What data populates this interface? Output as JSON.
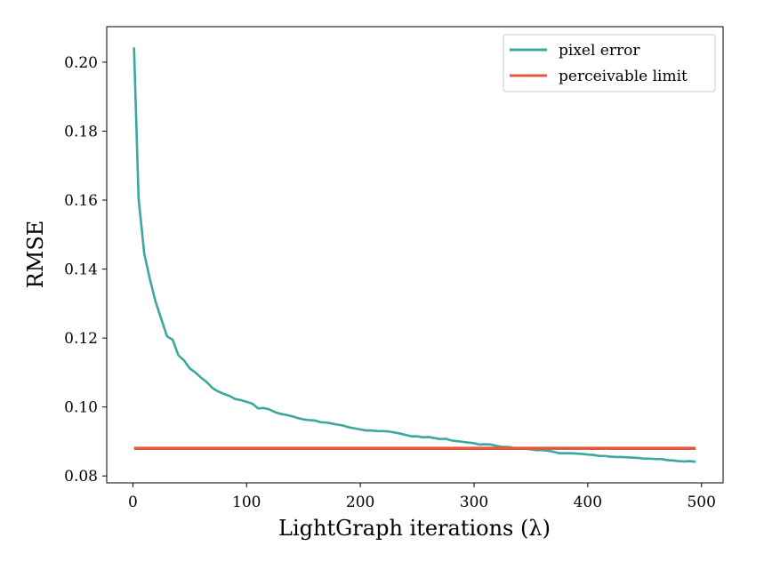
{
  "chart_data": {
    "type": "line",
    "xlabel": "LightGraph iterations (λ)",
    "ylabel": "RMSE",
    "xlim": [
      -23,
      519
    ],
    "ylim": [
      0.078,
      0.2103
    ],
    "xticks": [
      0,
      100,
      200,
      300,
      400,
      500
    ],
    "xtick_labels": [
      "0",
      "100",
      "200",
      "300",
      "400",
      "500"
    ],
    "yticks": [
      0.08,
      0.1,
      0.12,
      0.14,
      0.16,
      0.18,
      0.2
    ],
    "ytick_labels": [
      "0.08",
      "0.10",
      "0.12",
      "0.14",
      "0.16",
      "0.18",
      "0.20"
    ],
    "grid": false,
    "legend_position": "top-right",
    "series": [
      {
        "name": "pixel error",
        "color": "#3aa89e",
        "x": [
          1,
          5,
          10,
          15,
          20,
          25,
          30,
          35,
          40,
          45,
          50,
          55,
          60,
          65,
          70,
          75,
          80,
          85,
          90,
          95,
          100,
          105,
          110,
          115,
          120,
          125,
          130,
          135,
          140,
          145,
          150,
          155,
          160,
          165,
          170,
          175,
          180,
          185,
          190,
          195,
          200,
          205,
          210,
          215,
          220,
          225,
          230,
          235,
          240,
          245,
          250,
          255,
          260,
          265,
          270,
          275,
          280,
          285,
          290,
          295,
          300,
          305,
          310,
          315,
          320,
          325,
          330,
          335,
          340,
          345,
          350,
          355,
          360,
          365,
          370,
          375,
          380,
          385,
          390,
          395,
          400,
          405,
          410,
          415,
          420,
          425,
          430,
          435,
          440,
          445,
          450,
          455,
          460,
          465,
          470,
          475,
          480,
          485,
          490,
          495
        ],
        "y": [
          0.2043,
          0.1605,
          0.1445,
          0.137,
          0.1305,
          0.1255,
          0.1205,
          0.1195,
          0.115,
          0.1135,
          0.1112,
          0.11,
          0.1085,
          0.1072,
          0.1055,
          0.1045,
          0.1038,
          0.1032,
          0.1023,
          0.102,
          0.1015,
          0.101,
          0.0996,
          0.0997,
          0.0993,
          0.0985,
          0.098,
          0.0977,
          0.0973,
          0.0968,
          0.0964,
          0.0962,
          0.0961,
          0.0956,
          0.0955,
          0.0952,
          0.0949,
          0.0946,
          0.0941,
          0.0938,
          0.0935,
          0.0932,
          0.0932,
          0.093,
          0.093,
          0.0929,
          0.0926,
          0.0923,
          0.0919,
          0.0915,
          0.0915,
          0.0912,
          0.0913,
          0.091,
          0.0907,
          0.0908,
          0.0903,
          0.0901,
          0.0899,
          0.0897,
          0.0895,
          0.0891,
          0.0892,
          0.0891,
          0.0887,
          0.0884,
          0.0884,
          0.0881,
          0.0881,
          0.0879,
          0.0877,
          0.0875,
          0.0875,
          0.0873,
          0.087,
          0.0866,
          0.0866,
          0.0866,
          0.0865,
          0.0864,
          0.0862,
          0.0861,
          0.0858,
          0.0858,
          0.0856,
          0.0855,
          0.0855,
          0.0854,
          0.0853,
          0.0852,
          0.085,
          0.085,
          0.0849,
          0.0849,
          0.0846,
          0.0845,
          0.0843,
          0.0842,
          0.0843,
          0.0841
        ]
      },
      {
        "name": "perceivable limit",
        "color": "#e05a3f",
        "x": [
          1,
          495
        ],
        "y": [
          0.088,
          0.088
        ]
      }
    ]
  }
}
